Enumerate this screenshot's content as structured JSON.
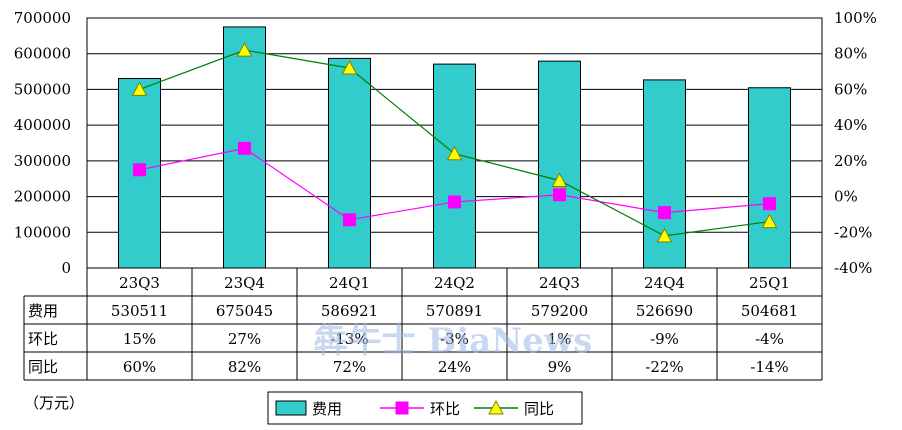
{
  "chart_data": {
    "type": "bar",
    "categories": [
      "23Q3",
      "23Q4",
      "24Q1",
      "24Q2",
      "24Q3",
      "24Q4",
      "25Q1"
    ],
    "series": [
      {
        "name": "费用",
        "type": "bar",
        "axis": "left",
        "values": [
          530511,
          675045,
          586921,
          570891,
          579200,
          526690,
          504681
        ]
      },
      {
        "name": "环比",
        "type": "line",
        "axis": "right",
        "marker": "square",
        "values": [
          15,
          27,
          -13,
          -3,
          1,
          -9,
          -4
        ]
      },
      {
        "name": "同比",
        "type": "line",
        "axis": "right",
        "marker": "triangle",
        "values": [
          60,
          82,
          72,
          24,
          9,
          -22,
          -14
        ]
      }
    ],
    "yleft": {
      "min": 0,
      "max": 700000,
      "step": 100000,
      "ticks": [
        "0",
        "100000",
        "200000",
        "300000",
        "400000",
        "500000",
        "600000",
        "700000"
      ]
    },
    "yright": {
      "min": -40,
      "max": 100,
      "step": 20,
      "ticks": [
        "-40%",
        "-20%",
        "0%",
        "20%",
        "40%",
        "60%",
        "80%",
        "100%"
      ]
    },
    "grid": true,
    "legend_position": "bottom"
  },
  "table": {
    "rows": [
      {
        "label": "费用",
        "cells": [
          "530511",
          "675045",
          "586921",
          "570891",
          "579200",
          "526690",
          "504681"
        ]
      },
      {
        "label": "环比",
        "cells": [
          "15%",
          "27%",
          "-13%",
          "-3%",
          "1%",
          "-9%",
          "-4%"
        ]
      },
      {
        "label": "同比",
        "cells": [
          "60%",
          "82%",
          "72%",
          "24%",
          "9%",
          "-22%",
          "-14%"
        ]
      }
    ]
  },
  "unit_label": "（万元）",
  "watermark": "犇牛士 BiaNews",
  "colors": {
    "bar": "#33CCCC",
    "hb_line": "#FF00FF",
    "yoy_line": "#008000",
    "yoy_marker": "#FFFF00",
    "grid": "#000000"
  }
}
